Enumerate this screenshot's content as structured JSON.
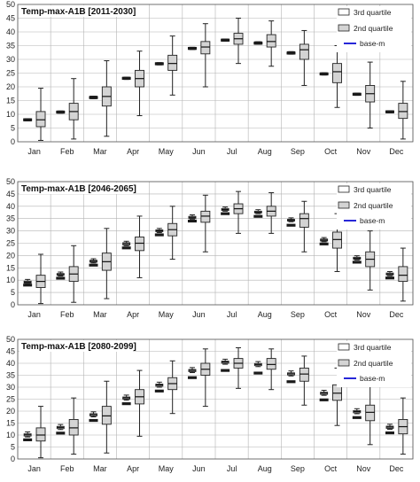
{
  "chart_data": [
    {
      "type": "boxplot",
      "title": "Temp-max-A1B [2011-2030]",
      "ylim": [
        0,
        50
      ],
      "ytick_step": 5,
      "grid": true,
      "legend_position": "top-right",
      "legend": [
        "3rd quartile",
        "2nd quartile",
        "base-m"
      ],
      "categories": [
        "Jan",
        "Feb",
        "Mar",
        "Apr",
        "May",
        "Jun",
        "Jul",
        "Aug",
        "Sep",
        "Oct",
        "Nov",
        "Dec"
      ],
      "narrow_boxes": [
        {
          "min": 7.6,
          "q1": 7.6,
          "median": 8.0,
          "q3": 8.4,
          "max": 8.4
        },
        {
          "min": 10.4,
          "q1": 10.4,
          "median": 10.8,
          "q3": 11.2,
          "max": 11.2
        },
        {
          "min": 15.7,
          "q1": 15.7,
          "median": 16.1,
          "q3": 16.6,
          "max": 16.6
        },
        {
          "min": 22.7,
          "q1": 22.7,
          "median": 23.1,
          "q3": 23.5,
          "max": 23.5
        },
        {
          "min": 28.0,
          "q1": 28.0,
          "median": 28.4,
          "q3": 28.8,
          "max": 28.8
        },
        {
          "min": 33.6,
          "q1": 33.6,
          "median": 34.0,
          "q3": 34.4,
          "max": 34.4
        },
        {
          "min": 36.6,
          "q1": 36.6,
          "median": 37.0,
          "q3": 37.4,
          "max": 37.4
        },
        {
          "min": 35.5,
          "q1": 35.5,
          "median": 35.9,
          "q3": 36.4,
          "max": 36.4
        },
        {
          "min": 31.9,
          "q1": 31.9,
          "median": 32.3,
          "q3": 32.8,
          "max": 32.8
        },
        {
          "min": 24.3,
          "q1": 24.3,
          "median": 24.7,
          "q3": 25.1,
          "max": 25.1
        },
        {
          "min": 16.9,
          "q1": 16.9,
          "median": 17.3,
          "q3": 17.7,
          "max": 17.7
        },
        {
          "min": 10.5,
          "q1": 10.5,
          "median": 10.9,
          "q3": 11.3,
          "max": 11.3
        }
      ],
      "wide_boxes": [
        {
          "min": 0.5,
          "q1": 5.5,
          "median": 8.0,
          "q3": 11.0,
          "max": 19.5
        },
        {
          "min": 1.0,
          "q1": 8.0,
          "median": 11.0,
          "q3": 14.0,
          "max": 23.0
        },
        {
          "min": 2.0,
          "q1": 13.0,
          "median": 16.5,
          "q3": 20.0,
          "max": 29.5
        },
        {
          "min": 9.5,
          "q1": 20.0,
          "median": 23.0,
          "q3": 26.0,
          "max": 33.0
        },
        {
          "min": 17.0,
          "q1": 26.0,
          "median": 28.5,
          "q3": 31.5,
          "max": 38.5
        },
        {
          "min": 20.0,
          "q1": 32.0,
          "median": 34.5,
          "q3": 36.5,
          "max": 43.0
        },
        {
          "min": 28.5,
          "q1": 35.5,
          "median": 37.5,
          "q3": 39.5,
          "max": 45.0
        },
        {
          "min": 27.5,
          "q1": 34.5,
          "median": 36.5,
          "q3": 39.0,
          "max": 44.0
        },
        {
          "min": 20.5,
          "q1": 30.0,
          "median": 33.5,
          "q3": 35.5,
          "max": 40.5
        },
        {
          "min": 12.5,
          "q1": 21.5,
          "median": 25.5,
          "q3": 28.5,
          "max": 35.0
        },
        {
          "min": 5.0,
          "q1": 14.5,
          "median": 17.5,
          "q3": 20.5,
          "max": 29.0
        },
        {
          "min": 1.0,
          "q1": 8.5,
          "median": 11.0,
          "q3": 14.0,
          "max": 22.0
        }
      ],
      "base_m": [
        8.0,
        10.8,
        16.1,
        23.1,
        28.4,
        34.0,
        37.0,
        35.9,
        32.3,
        24.7,
        17.3,
        10.9
      ]
    },
    {
      "type": "boxplot",
      "title": "Temp-max-A1B [2046-2065]",
      "ylim": [
        0,
        50
      ],
      "ytick_step": 5,
      "grid": true,
      "legend_position": "top-right",
      "legend": [
        "3rd quartile",
        "2nd quartile",
        "base-m"
      ],
      "categories": [
        "Jan",
        "Feb",
        "Mar",
        "Apr",
        "May",
        "Jun",
        "Jul",
        "Aug",
        "Sep",
        "Oct",
        "Nov",
        "Dec"
      ],
      "narrow_boxes": [
        {
          "min": 8.5,
          "q1": 8.8,
          "median": 9.2,
          "q3": 9.6,
          "max": 10.3
        },
        {
          "min": 11.7,
          "q1": 12.0,
          "median": 12.3,
          "q3": 12.7,
          "max": 13.3
        },
        {
          "min": 17.0,
          "q1": 17.3,
          "median": 17.7,
          "q3": 18.1,
          "max": 18.7
        },
        {
          "min": 24.0,
          "q1": 24.3,
          "median": 24.8,
          "q3": 25.2,
          "max": 25.8
        },
        {
          "min": 29.3,
          "q1": 29.7,
          "median": 30.0,
          "q3": 30.4,
          "max": 31.0
        },
        {
          "min": 34.8,
          "q1": 35.1,
          "median": 35.5,
          "q3": 35.9,
          "max": 36.5
        },
        {
          "min": 38.0,
          "q1": 38.3,
          "median": 38.7,
          "q3": 39.1,
          "max": 39.7
        },
        {
          "min": 37.0,
          "q1": 37.3,
          "median": 37.6,
          "q3": 38.0,
          "max": 38.6
        },
        {
          "min": 33.7,
          "q1": 34.0,
          "median": 34.4,
          "q3": 34.7,
          "max": 35.3
        },
        {
          "min": 25.6,
          "q1": 25.9,
          "median": 26.3,
          "q3": 26.7,
          "max": 27.3
        },
        {
          "min": 18.2,
          "q1": 18.5,
          "median": 18.9,
          "q3": 19.3,
          "max": 19.9
        },
        {
          "min": 11.8,
          "q1": 12.1,
          "median": 12.5,
          "q3": 12.9,
          "max": 13.5
        }
      ],
      "wide_boxes": [
        {
          "min": 0.5,
          "q1": 7.0,
          "median": 9.5,
          "q3": 12.0,
          "max": 20.5
        },
        {
          "min": 1.0,
          "q1": 9.5,
          "median": 12.5,
          "q3": 15.5,
          "max": 24.0
        },
        {
          "min": 2.5,
          "q1": 14.0,
          "median": 17.5,
          "q3": 21.0,
          "max": 31.0
        },
        {
          "min": 11.0,
          "q1": 22.0,
          "median": 25.0,
          "q3": 27.5,
          "max": 36.0
        },
        {
          "min": 18.5,
          "q1": 28.0,
          "median": 30.5,
          "q3": 33.0,
          "max": 40.0
        },
        {
          "min": 21.5,
          "q1": 33.5,
          "median": 36.0,
          "q3": 38.0,
          "max": 44.5
        },
        {
          "min": 29.0,
          "q1": 37.0,
          "median": 39.0,
          "q3": 41.0,
          "max": 46.0
        },
        {
          "min": 29.0,
          "q1": 36.0,
          "median": 38.0,
          "q3": 40.0,
          "max": 45.5
        },
        {
          "min": 21.5,
          "q1": 31.5,
          "median": 35.0,
          "q3": 37.0,
          "max": 42.0
        },
        {
          "min": 13.5,
          "q1": 23.0,
          "median": 26.5,
          "q3": 29.5,
          "max": 37.0
        },
        {
          "min": 6.0,
          "q1": 15.5,
          "median": 18.5,
          "q3": 21.5,
          "max": 30.0
        },
        {
          "min": 1.5,
          "q1": 9.5,
          "median": 12.0,
          "q3": 15.5,
          "max": 23.0
        }
      ],
      "base_m": [
        8.0,
        10.8,
        16.1,
        23.1,
        28.4,
        34.0,
        37.0,
        35.9,
        32.3,
        24.7,
        17.3,
        10.9
      ]
    },
    {
      "type": "boxplot",
      "title": "Temp-max-A1B [2080-2099]",
      "ylim": [
        0,
        50
      ],
      "ytick_step": 5,
      "grid": true,
      "legend_position": "top-right",
      "legend": [
        "3rd quartile",
        "2nd quartile",
        "base-m"
      ],
      "categories": [
        "Jan",
        "Feb",
        "Mar",
        "Apr",
        "May",
        "Jun",
        "Jul",
        "Aug",
        "Sep",
        "Oct",
        "Nov",
        "Dec"
      ],
      "narrow_boxes": [
        {
          "min": 9.2,
          "q1": 9.6,
          "median": 10.1,
          "q3": 10.5,
          "max": 11.3
        },
        {
          "min": 12.3,
          "q1": 12.7,
          "median": 13.2,
          "q3": 13.6,
          "max": 14.4
        },
        {
          "min": 17.6,
          "q1": 18.0,
          "median": 18.5,
          "q3": 18.9,
          "max": 19.7
        },
        {
          "min": 24.6,
          "q1": 25.0,
          "median": 25.5,
          "q3": 25.9,
          "max": 26.7
        },
        {
          "min": 30.0,
          "q1": 30.4,
          "median": 30.9,
          "q3": 31.3,
          "max": 32.1
        },
        {
          "min": 36.1,
          "q1": 36.5,
          "median": 37.0,
          "q3": 37.4,
          "max": 38.2
        },
        {
          "min": 39.6,
          "q1": 40.0,
          "median": 40.5,
          "q3": 40.9,
          "max": 41.7
        },
        {
          "min": 38.6,
          "q1": 39.0,
          "median": 39.5,
          "q3": 39.9,
          "max": 40.7
        },
        {
          "min": 34.7,
          "q1": 35.1,
          "median": 35.6,
          "q3": 36.0,
          "max": 36.8
        },
        {
          "min": 26.6,
          "q1": 27.0,
          "median": 27.5,
          "q3": 27.9,
          "max": 28.7
        },
        {
          "min": 18.9,
          "q1": 19.3,
          "median": 19.8,
          "q3": 20.2,
          "max": 21.0
        },
        {
          "min": 12.4,
          "q1": 12.8,
          "median": 13.3,
          "q3": 13.7,
          "max": 14.5
        }
      ],
      "wide_boxes": [
        {
          "min": 0.5,
          "q1": 7.5,
          "median": 10.0,
          "q3": 13.0,
          "max": 22.0
        },
        {
          "min": 2.0,
          "q1": 10.0,
          "median": 13.0,
          "q3": 16.5,
          "max": 25.5
        },
        {
          "min": 2.5,
          "q1": 14.5,
          "median": 18.0,
          "q3": 22.0,
          "max": 32.5
        },
        {
          "min": 9.5,
          "q1": 23.0,
          "median": 26.0,
          "q3": 29.0,
          "max": 37.0
        },
        {
          "min": 19.0,
          "q1": 29.0,
          "median": 31.5,
          "q3": 34.0,
          "max": 41.0
        },
        {
          "min": 22.0,
          "q1": 35.0,
          "median": 37.5,
          "q3": 40.0,
          "max": 46.0
        },
        {
          "min": 29.5,
          "q1": 38.0,
          "median": 40.0,
          "q3": 42.0,
          "max": 46.5
        },
        {
          "min": 29.0,
          "q1": 37.5,
          "median": 39.5,
          "q3": 42.0,
          "max": 46.0
        },
        {
          "min": 22.5,
          "q1": 32.5,
          "median": 35.5,
          "q3": 38.0,
          "max": 43.0
        },
        {
          "min": 14.0,
          "q1": 24.5,
          "median": 27.5,
          "q3": 31.0,
          "max": 38.0
        },
        {
          "min": 6.0,
          "q1": 16.0,
          "median": 19.5,
          "q3": 22.5,
          "max": 31.0
        },
        {
          "min": 2.0,
          "q1": 10.5,
          "median": 13.5,
          "q3": 16.5,
          "max": 25.5
        }
      ],
      "base_m": [
        8.0,
        10.8,
        16.1,
        23.1,
        28.4,
        34.0,
        37.0,
        35.9,
        32.3,
        24.7,
        17.3,
        10.9
      ]
    }
  ],
  "colors": {
    "narrow_box_fill": "#ffffff",
    "wide_box_fill": "#d4d4d4",
    "base_m_marker": "#1a1a1a",
    "base_m_legend_line": "#2727d8",
    "grid": "#b3b3b3",
    "axis": "#555555"
  }
}
